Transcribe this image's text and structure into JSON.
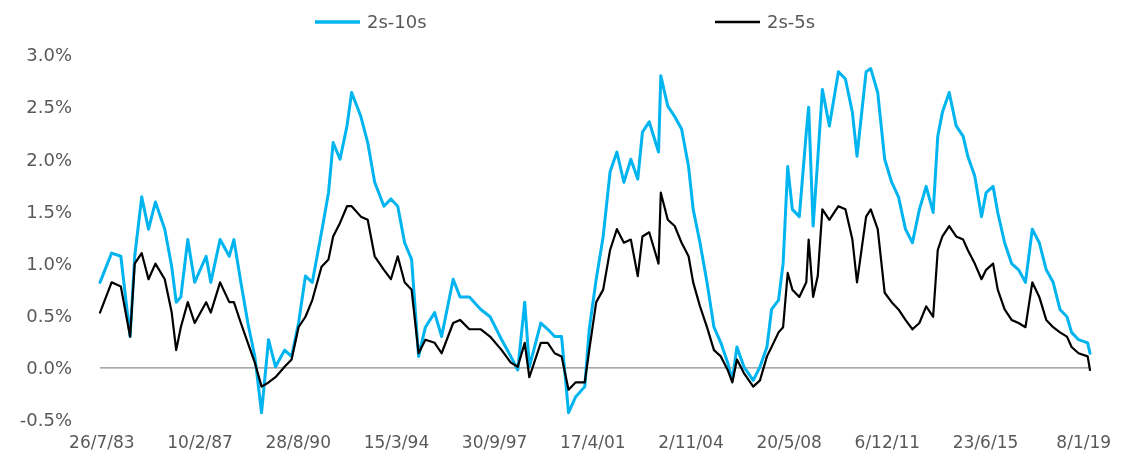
{
  "chart_data": {
    "type": "line",
    "legend": "top",
    "line_style": "solid",
    "marker": "none",
    "ref_lines": [
      {
        "axis": "y",
        "value": 0,
        "color": "#8c8c8c"
      }
    ],
    "xlim": [
      "1983-07-01",
      "2019-04-01"
    ],
    "xticks": [
      {
        "value": "1983-07-26",
        "label": "26/7/83"
      },
      {
        "value": "1987-02-10",
        "label": "10/2/87"
      },
      {
        "value": "1990-08-28",
        "label": "28/8/90"
      },
      {
        "value": "1994-03-15",
        "label": "15/3/94"
      },
      {
        "value": "1997-09-30",
        "label": "30/9/97"
      },
      {
        "value": "2001-04-17",
        "label": "17/4/01"
      },
      {
        "value": "2004-11-02",
        "label": "2/11/04"
      },
      {
        "value": "2008-05-20",
        "label": "20/5/08"
      },
      {
        "value": "2011-12-06",
        "label": "6/12/11"
      },
      {
        "value": "2015-06-23",
        "label": "23/6/15"
      },
      {
        "value": "2019-01-08",
        "label": "8/1/19"
      }
    ],
    "ylim": [
      -0.5,
      3.0
    ],
    "yticks": [
      {
        "value": -0.5,
        "label": "-0.5%"
      },
      {
        "value": 0,
        "label": "0.0%"
      },
      {
        "value": 0.5,
        "label": "0.5%"
      },
      {
        "value": 1,
        "label": "1.0%"
      },
      {
        "value": 1.5,
        "label": "1.5%"
      },
      {
        "value": 2,
        "label": "2.0%"
      },
      {
        "value": 2.5,
        "label": "2.5%"
      },
      {
        "value": 3,
        "label": "3.0%"
      }
    ],
    "x": [
      "1983-07",
      "1983-12",
      "1984-04",
      "1984-08",
      "1984-10",
      "1985-01",
      "1985-04",
      "1985-07",
      "1985-11",
      "1986-02",
      "1986-04",
      "1986-06",
      "1986-09",
      "1986-12",
      "1987-05",
      "1987-07",
      "1987-11",
      "1988-03",
      "1988-05",
      "1988-08",
      "1988-11",
      "1989-02",
      "1989-05",
      "1989-08",
      "1989-11",
      "1990-03",
      "1990-06",
      "1990-09",
      "1990-12",
      "1991-03",
      "1991-07",
      "1991-10",
      "1991-12",
      "1992-03",
      "1992-06",
      "1992-08",
      "1992-12",
      "1993-03",
      "1993-06",
      "1993-10",
      "1994-01",
      "1994-04",
      "1994-07",
      "1994-10",
      "1995-01",
      "1995-04",
      "1995-08",
      "1995-11",
      "1996-04",
      "1996-07",
      "1996-11",
      "1997-04",
      "1997-08",
      "1998-01",
      "1998-05",
      "1998-08",
      "1998-11",
      "1999-01",
      "1999-06",
      "1999-09",
      "1999-12",
      "2000-03",
      "2000-06",
      "2000-09",
      "2001-01",
      "2001-03",
      "2001-06",
      "2001-09",
      "2001-12",
      "2002-03",
      "2002-06",
      "2002-09",
      "2002-12",
      "2003-02",
      "2003-05",
      "2003-09",
      "2003-10",
      "2004-01",
      "2004-04",
      "2004-07",
      "2004-10",
      "2004-12",
      "2005-03",
      "2005-06",
      "2005-09",
      "2005-12",
      "2006-03",
      "2006-05",
      "2006-07",
      "2006-10",
      "2007-02",
      "2007-05",
      "2007-08",
      "2007-10",
      "2008-01",
      "2008-03",
      "2008-05",
      "2008-07",
      "2008-10",
      "2009-01",
      "2009-02",
      "2009-04",
      "2009-06",
      "2009-08",
      "2009-11",
      "2010-03",
      "2010-06",
      "2010-09",
      "2010-11",
      "2011-03",
      "2011-05",
      "2011-08",
      "2011-11",
      "2012-02",
      "2012-05",
      "2012-08",
      "2012-11",
      "2013-02",
      "2013-05",
      "2013-08",
      "2013-10",
      "2013-12",
      "2014-03",
      "2014-06",
      "2014-09",
      "2014-11",
      "2015-02",
      "2015-05",
      "2015-07",
      "2015-10",
      "2015-12",
      "2016-03",
      "2016-06",
      "2016-09",
      "2016-12",
      "2017-03",
      "2017-06",
      "2017-09",
      "2017-12",
      "2018-03",
      "2018-06",
      "2018-08",
      "2018-11",
      "2019-03",
      "2019-04"
    ],
    "series": [
      {
        "name": "2s-10s",
        "color": "#00b4f0",
        "values": [
          0.82,
          1.1,
          1.07,
          0.3,
          1.07,
          1.64,
          1.33,
          1.59,
          1.33,
          0.97,
          0.63,
          0.68,
          1.23,
          0.82,
          1.07,
          0.82,
          1.23,
          1.07,
          1.23,
          0.82,
          0.43,
          0.11,
          -0.43,
          0.27,
          0.01,
          0.17,
          0.11,
          0.43,
          0.88,
          0.82,
          1.3,
          1.68,
          2.16,
          2.0,
          2.32,
          2.64,
          2.41,
          2.16,
          1.78,
          1.55,
          1.62,
          1.55,
          1.2,
          1.04,
          0.11,
          0.39,
          0.53,
          0.3,
          0.85,
          0.68,
          0.68,
          0.56,
          0.49,
          0.27,
          0.11,
          -0.02,
          0.63,
          0.01,
          0.43,
          0.37,
          0.3,
          0.3,
          -0.43,
          -0.28,
          -0.18,
          0.37,
          0.85,
          1.26,
          1.88,
          2.07,
          1.78,
          2.0,
          1.81,
          2.26,
          2.36,
          2.07,
          2.8,
          2.51,
          2.41,
          2.29,
          1.93,
          1.52,
          1.2,
          0.82,
          0.39,
          0.24,
          0.05,
          -0.12,
          0.2,
          0.01,
          -0.12,
          0.01,
          0.2,
          0.56,
          0.65,
          1.0,
          1.93,
          1.52,
          1.45,
          2.26,
          2.5,
          1.36,
          2.0,
          2.67,
          2.32,
          2.84,
          2.77,
          2.45,
          2.03,
          2.84,
          2.87,
          2.64,
          2.0,
          1.78,
          1.64,
          1.33,
          1.2,
          1.52,
          1.74,
          1.49,
          2.22,
          2.45,
          2.64,
          2.32,
          2.22,
          2.03,
          1.84,
          1.45,
          1.68,
          1.74,
          1.49,
          1.2,
          1.0,
          0.94,
          0.82,
          1.33,
          1.2,
          0.94,
          0.82,
          0.56,
          0.49,
          0.34,
          0.27,
          0.24,
          0.14
        ]
      },
      {
        "name": "2s-5s",
        "color": "#000000",
        "values": [
          0.53,
          0.82,
          0.78,
          0.3,
          1.0,
          1.1,
          0.85,
          1.0,
          0.85,
          0.53,
          0.17,
          0.39,
          0.63,
          0.43,
          0.63,
          0.53,
          0.82,
          0.63,
          0.63,
          0.43,
          0.24,
          0.05,
          -0.18,
          -0.14,
          -0.09,
          0.01,
          0.08,
          0.39,
          0.49,
          0.65,
          0.97,
          1.04,
          1.26,
          1.39,
          1.55,
          1.55,
          1.45,
          1.42,
          1.07,
          0.94,
          0.85,
          1.07,
          0.82,
          0.75,
          0.14,
          0.27,
          0.24,
          0.14,
          0.43,
          0.46,
          0.37,
          0.37,
          0.3,
          0.17,
          0.05,
          0.01,
          0.24,
          -0.09,
          0.24,
          0.24,
          0.14,
          0.11,
          -0.21,
          -0.14,
          -0.14,
          0.17,
          0.63,
          0.75,
          1.13,
          1.33,
          1.2,
          1.23,
          0.88,
          1.26,
          1.3,
          1.0,
          1.68,
          1.42,
          1.36,
          1.2,
          1.07,
          0.82,
          0.59,
          0.39,
          0.17,
          0.11,
          -0.02,
          -0.14,
          0.08,
          -0.05,
          -0.18,
          -0.12,
          0.11,
          0.2,
          0.34,
          0.39,
          0.91,
          0.75,
          0.68,
          0.82,
          1.23,
          0.68,
          0.88,
          1.52,
          1.42,
          1.55,
          1.52,
          1.23,
          0.82,
          1.45,
          1.52,
          1.33,
          0.72,
          0.63,
          0.56,
          0.46,
          0.37,
          0.43,
          0.59,
          0.49,
          1.13,
          1.26,
          1.36,
          1.26,
          1.23,
          1.13,
          1.0,
          0.85,
          0.94,
          1.0,
          0.75,
          0.56,
          0.46,
          0.43,
          0.39,
          0.82,
          0.68,
          0.46,
          0.39,
          0.34,
          0.3,
          0.2,
          0.14,
          0.11,
          -0.02
        ]
      }
    ]
  }
}
